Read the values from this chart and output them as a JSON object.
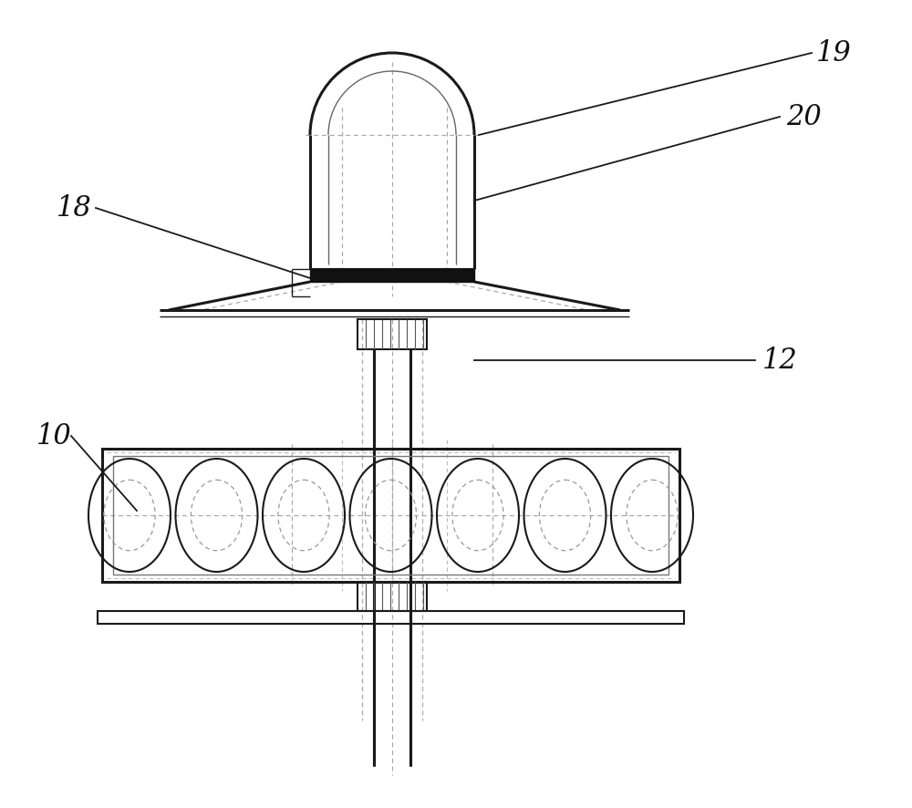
{
  "bg_color": "#ffffff",
  "line_color": "#1a1a1a",
  "label_color": "#111111",
  "figsize": [
    10.0,
    8.86
  ],
  "lw_heavy": 2.2,
  "lw_med": 1.5,
  "lw_light": 1.0,
  "lw_thin": 0.8
}
